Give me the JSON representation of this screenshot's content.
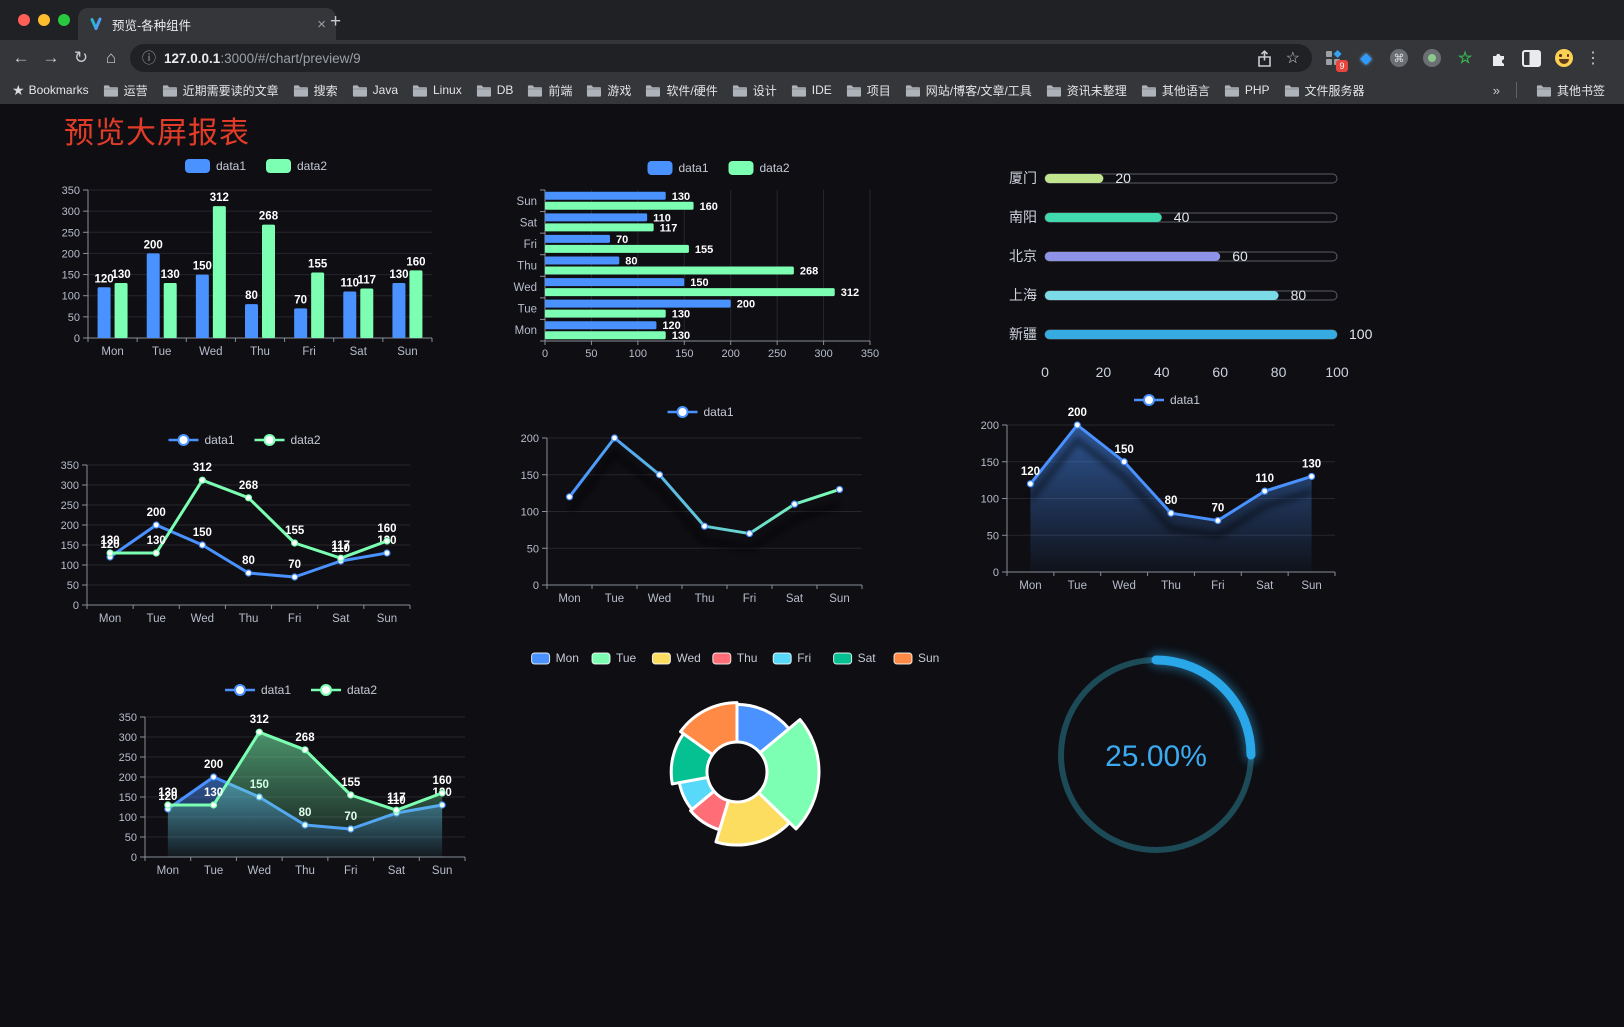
{
  "browser": {
    "tab_title": "预览-各种组件",
    "url_host": "127.0.0.1",
    "url_rest": ":3000/#/chart/preview/9",
    "extension_badge": "9",
    "bookmarks_label": "Bookmarks",
    "bookmarks": [
      "运营",
      "近期需要读的文章",
      "搜索",
      "Java",
      "Linux",
      "DB",
      "前端",
      "游戏",
      "软件/硬件",
      "设计",
      "IDE",
      "项目",
      "网站/博客/文章/工具",
      "资讯未整理",
      "其他语言",
      "PHP",
      "文件服务器"
    ],
    "bookmarks_overflow": "»",
    "other_bookmarks": "其他书签"
  },
  "icons": {
    "back": "←",
    "forward": "→",
    "reload": "↻",
    "home": "⌂",
    "info": "ⓘ",
    "star": "☆",
    "menu": "⋮",
    "command": "⌘",
    "gem": "◆",
    "green_star": "☆",
    "close": "×",
    "plus": "+",
    "bookmarks_star": "★"
  },
  "page": {
    "title": "预览大屏报表"
  },
  "palette": [
    "#4992ff",
    "#7cffb2",
    "#fddd60",
    "#ff6e76",
    "#58d9f9",
    "#05c091",
    "#ff8a45"
  ],
  "chart_data": [
    {
      "id": "bar-grouped",
      "type": "bar",
      "categories": [
        "Mon",
        "Tue",
        "Wed",
        "Thu",
        "Fri",
        "Sat",
        "Sun"
      ],
      "series": [
        {
          "name": "data1",
          "color": "#4992ff",
          "values": [
            120,
            200,
            150,
            80,
            70,
            110,
            130
          ]
        },
        {
          "name": "data2",
          "color": "#7cffb2",
          "values": [
            130,
            130,
            312,
            268,
            155,
            117,
            160
          ]
        }
      ],
      "ylim": [
        0,
        350
      ],
      "ytick": 50,
      "legend": true,
      "labels": true
    },
    {
      "id": "hbar-grouped",
      "type": "hbar",
      "categories": [
        "Mon",
        "Tue",
        "Wed",
        "Thu",
        "Fri",
        "Sat",
        "Sun"
      ],
      "display_order_top_to_bottom": [
        "Sun",
        "Sat",
        "Fri",
        "Thu",
        "Wed",
        "Tue",
        "Mon"
      ],
      "series": [
        {
          "name": "data1",
          "color": "#4992ff",
          "values": [
            120,
            200,
            150,
            80,
            70,
            110,
            130
          ]
        },
        {
          "name": "data2",
          "color": "#7cffb2",
          "values": [
            130,
            130,
            312,
            268,
            155,
            117,
            160
          ]
        }
      ],
      "xlim": [
        0,
        350
      ],
      "xtick": 50,
      "legend": true,
      "labels": true
    },
    {
      "id": "progress",
      "type": "progress",
      "max": 100,
      "items": [
        {
          "label": "厦门",
          "value": 20,
          "color": "#c0e58e"
        },
        {
          "label": "南阳",
          "value": 40,
          "color": "#41d9ae"
        },
        {
          "label": "北京",
          "value": 60,
          "color": "#8f93e8"
        },
        {
          "label": "上海",
          "value": 80,
          "color": "#7bdce8"
        },
        {
          "label": "新疆",
          "value": 100,
          "color": "#35abe2"
        }
      ],
      "axis_ticks": [
        0,
        20,
        40,
        60,
        80,
        100
      ]
    },
    {
      "id": "line-two",
      "type": "line",
      "categories": [
        "Mon",
        "Tue",
        "Wed",
        "Thu",
        "Fri",
        "Sat",
        "Sun"
      ],
      "series": [
        {
          "name": "data1",
          "color": "#4992ff",
          "values": [
            120,
            200,
            150,
            80,
            70,
            110,
            130
          ]
        },
        {
          "name": "data2",
          "color": "#7cffb2",
          "values": [
            130,
            130,
            312,
            268,
            155,
            117,
            160
          ]
        }
      ],
      "ylim": [
        0,
        350
      ],
      "ytick": 50,
      "legend": true,
      "labels": true
    },
    {
      "id": "line-gradient",
      "type": "line",
      "categories": [
        "Mon",
        "Tue",
        "Wed",
        "Thu",
        "Fri",
        "Sat",
        "Sun"
      ],
      "series": [
        {
          "name": "data1",
          "color": "#4992ff",
          "color2": "#7cffb2",
          "values": [
            120,
            200,
            150,
            80,
            70,
            110,
            130
          ]
        }
      ],
      "ylim": [
        0,
        200
      ],
      "ytick": 50,
      "legend": true,
      "labels": false,
      "gradient": true,
      "shadow": true
    },
    {
      "id": "line-area",
      "type": "line",
      "categories": [
        "Mon",
        "Tue",
        "Wed",
        "Thu",
        "Fri",
        "Sat",
        "Sun"
      ],
      "series": [
        {
          "name": "data1",
          "color": "#4992ff",
          "values": [
            120,
            200,
            150,
            80,
            70,
            110,
            130
          ]
        }
      ],
      "ylim": [
        0,
        200
      ],
      "ytick": 50,
      "legend": true,
      "labels": true,
      "area": true,
      "shadow": true
    },
    {
      "id": "line-two-area",
      "type": "line",
      "categories": [
        "Mon",
        "Tue",
        "Wed",
        "Thu",
        "Fri",
        "Sat",
        "Sun"
      ],
      "series": [
        {
          "name": "data1",
          "color": "#4992ff",
          "values": [
            120,
            200,
            150,
            80,
            70,
            110,
            130
          ]
        },
        {
          "name": "data2",
          "color": "#7cffb2",
          "values": [
            130,
            130,
            312,
            268,
            155,
            117,
            160
          ]
        }
      ],
      "ylim": [
        0,
        350
      ],
      "ytick": 50,
      "legend": true,
      "labels": true,
      "area": true
    },
    {
      "id": "pie-rose",
      "type": "pie",
      "rose": true,
      "donut": true,
      "legend": true,
      "categories": [
        "Mon",
        "Tue",
        "Wed",
        "Thu",
        "Fri",
        "Sat",
        "Sun"
      ],
      "values": [
        120,
        200,
        150,
        80,
        70,
        110,
        130
      ],
      "colors": [
        "#4992ff",
        "#7cffb2",
        "#fddd60",
        "#ff6e76",
        "#58d9f9",
        "#05c091",
        "#ff8a45"
      ],
      "border_color": "#ffffff"
    },
    {
      "id": "gauge",
      "type": "gauge",
      "percent": 25,
      "label": "25.00%",
      "color": "#2aa7e8",
      "track_color": "#1d4a57",
      "text_color": "#3caaf0"
    }
  ]
}
